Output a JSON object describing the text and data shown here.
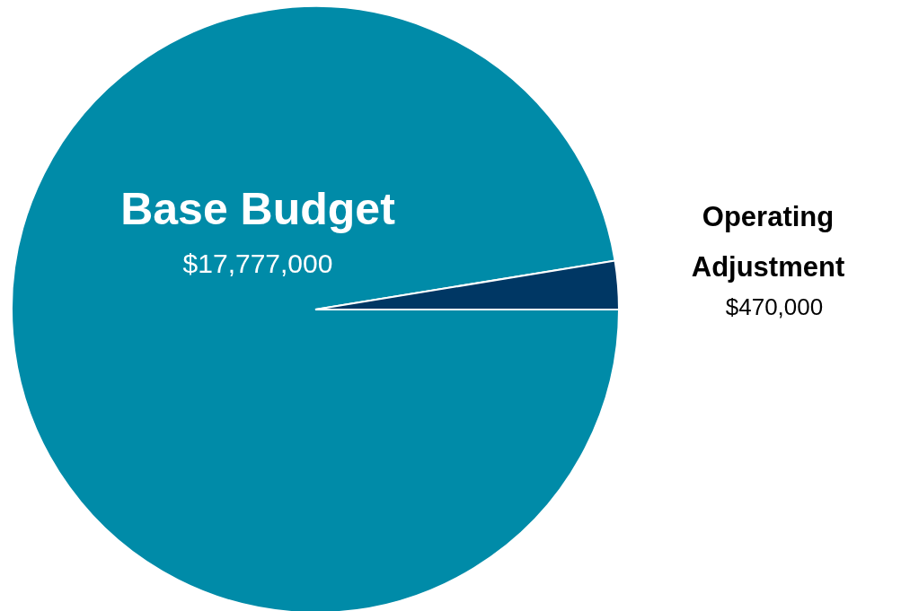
{
  "chart_data": {
    "type": "pie",
    "categories": [
      "Base Budget",
      "Operating Adjustment"
    ],
    "values": [
      17777000,
      470000
    ],
    "colors": [
      "#008ba8",
      "#003764"
    ],
    "value_labels": [
      "$17,777,000",
      "$470,000"
    ]
  }
}
